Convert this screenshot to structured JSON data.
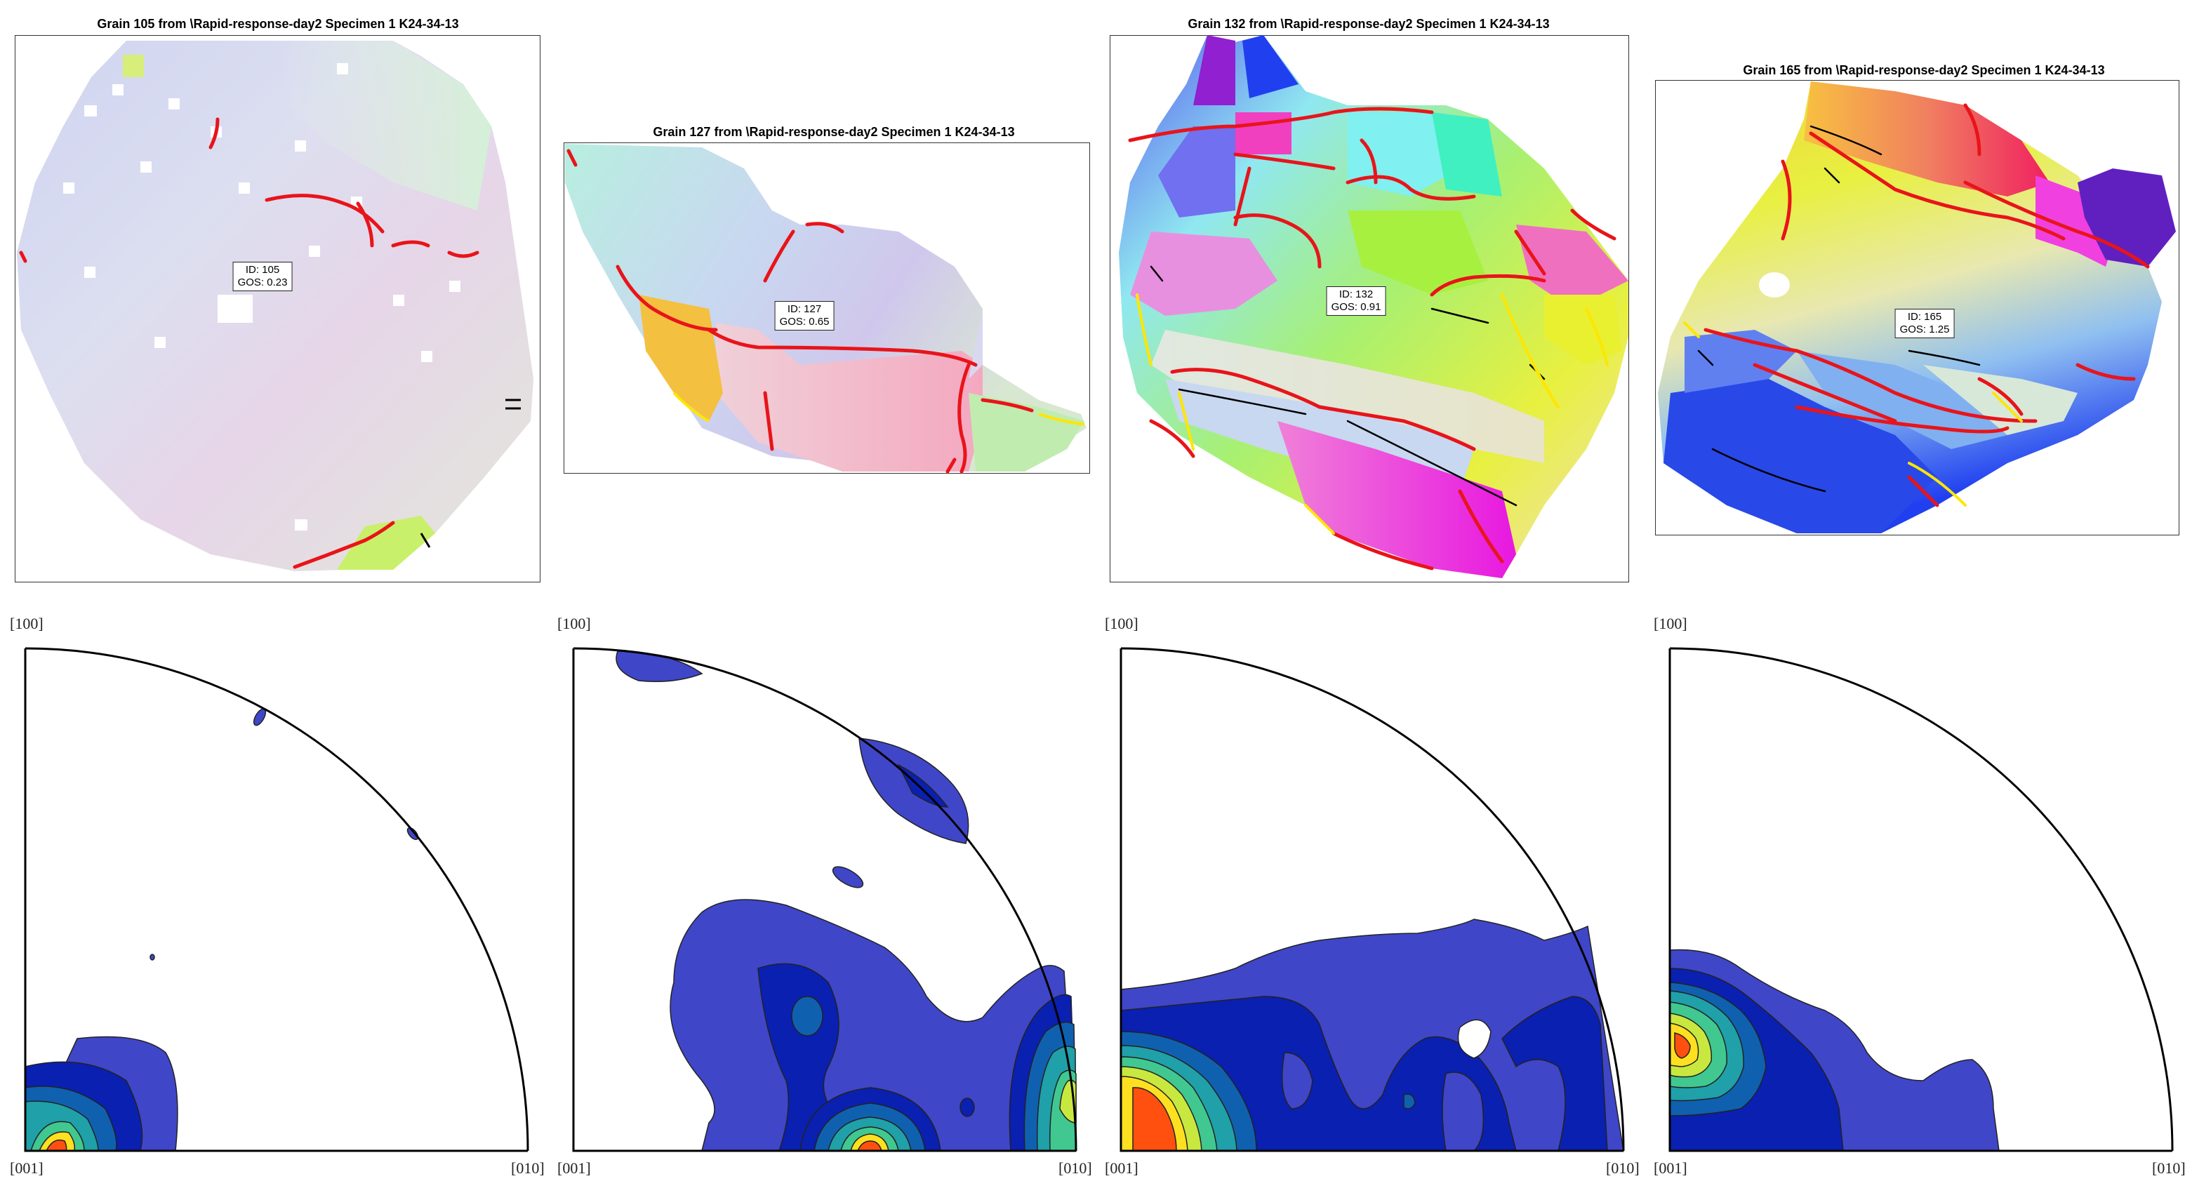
{
  "colors": {
    "gb_high": "#e8141a",
    "gb_low": "#000000",
    "gb_mid": "#ffe600",
    "contour_1": "#4046c8",
    "contour_2": "#0a20b0",
    "contour_3": "#1060b0",
    "contour_4": "#20a0a8",
    "contour_5": "#40c890",
    "contour_6": "#c8e840",
    "contour_7": "#ffe020",
    "contour_8": "#ff5010"
  },
  "grains": [
    {
      "title": "Grain 105 from \\Rapid-response-day2 Specimen 1 K24-34-13",
      "id_label": "ID: 105",
      "gos_label": "GOS: 0.23"
    },
    {
      "title": "Grain 127 from \\Rapid-response-day2 Specimen 1 K24-34-13",
      "id_label": "ID: 127",
      "gos_label": "GOS: 0.65"
    },
    {
      "title": "Grain 132 from \\Rapid-response-day2 Specimen 1 K24-34-13",
      "id_label": "ID: 132",
      "gos_label": "GOS: 0.91"
    },
    {
      "title": "Grain 165 from \\Rapid-response-day2 Specimen 1 K24-34-13",
      "id_label": "ID: 165",
      "gos_label": "GOS: 1.25"
    }
  ],
  "ipf": {
    "top_label": "[100]",
    "left_label": "[001]",
    "right_label": "[010]"
  }
}
